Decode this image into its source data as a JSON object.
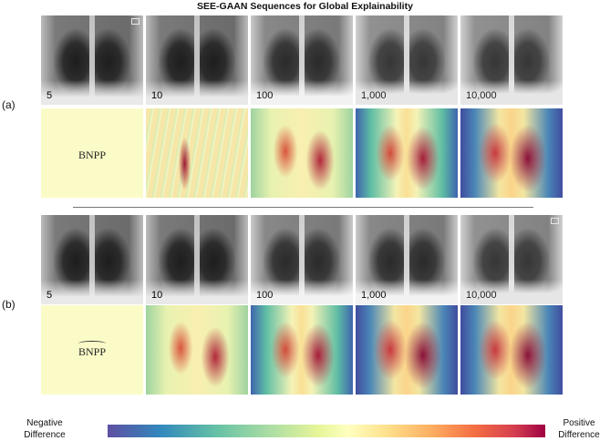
{
  "figure": {
    "title": "SEE-GAAN Sequences for Global Explainability",
    "panels": [
      {
        "label": "(a)",
        "xray_tiles": [
          {
            "label": "5"
          },
          {
            "label": "10"
          },
          {
            "label": "100"
          },
          {
            "label": "1,000"
          },
          {
            "label": "10,000"
          }
        ],
        "difference_first_label": "BNPP"
      },
      {
        "label": "(b)",
        "xray_tiles": [
          {
            "label": "5"
          },
          {
            "label": "10"
          },
          {
            "label": "100"
          },
          {
            "label": "1,000"
          },
          {
            "label": "10,000"
          }
        ],
        "difference_first_label": "BNPP"
      }
    ],
    "colorbar": {
      "negative_label_line1": "Negative",
      "negative_label_line2": "Difference",
      "positive_label_line1": "Positive",
      "positive_label_line2": "Difference",
      "colormap": [
        "#5e4fa2",
        "#3288bd",
        "#66c2a5",
        "#abdda4",
        "#e6f598",
        "#ffffbf",
        "#fee08b",
        "#fdae61",
        "#f46d43",
        "#d53e4f",
        "#9e0142"
      ]
    }
  }
}
